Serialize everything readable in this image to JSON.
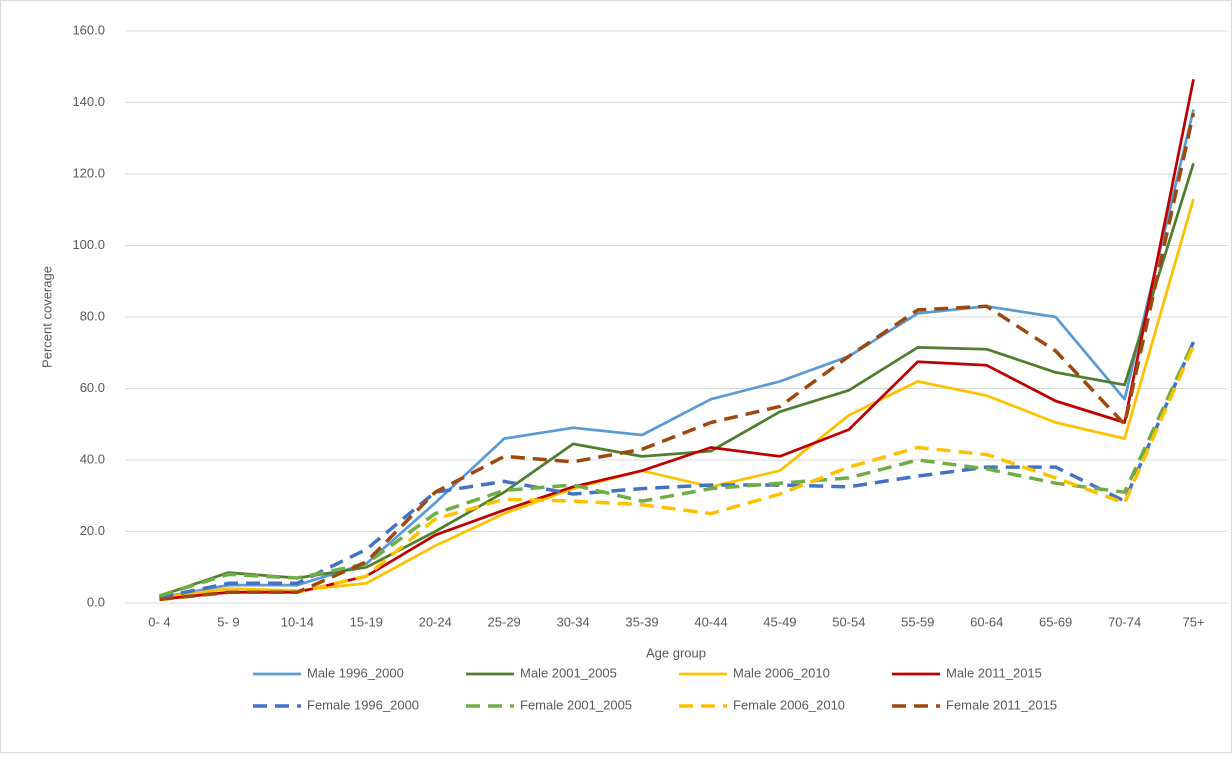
{
  "chart_data": {
    "type": "line",
    "x_label": "Age group",
    "y_label": "Percent coverage",
    "categories": [
      "0- 4",
      "5- 9",
      "10-14",
      "15-19",
      "20-24",
      "25-29",
      "30-34",
      "35-39",
      "40-44",
      "45-49",
      "50-54",
      "55-59",
      "60-64",
      "65-69",
      "70-74",
      "75+"
    ],
    "ylim": [
      0,
      160
    ],
    "yticks": [
      {
        "value": 0,
        "label": "0.0"
      },
      {
        "value": 20,
        "label": "20.0"
      },
      {
        "value": 40,
        "label": "40.0"
      },
      {
        "value": 60,
        "label": "60.0"
      },
      {
        "value": 80,
        "label": "80.0"
      },
      {
        "value": 100,
        "label": "100.0"
      },
      {
        "value": 120,
        "label": "120.0"
      },
      {
        "value": 140,
        "label": "140.0"
      },
      {
        "value": 160,
        "label": "160.0"
      }
    ],
    "grid": true,
    "legend": "bottom",
    "series": [
      {
        "name": "Male 1996_2000",
        "color": "#5b9bd5",
        "dashed": false,
        "values": [
          1.5,
          5,
          5,
          11,
          28,
          46,
          49,
          47,
          57,
          62,
          69,
          81,
          83,
          80,
          57,
          138
        ]
      },
      {
        "name": "Male 2001_2005",
        "color": "#4f7f2e",
        "dashed": false,
        "values": [
          2,
          8.5,
          7,
          10,
          20,
          31,
          44.5,
          41,
          42.5,
          53.5,
          59.5,
          71.5,
          71,
          64.5,
          61,
          123
        ]
      },
      {
        "name": "Male 2006_2010",
        "color": "#ffc000",
        "dashed": false,
        "values": [
          1.5,
          4,
          3.5,
          5.5,
          16,
          25,
          32,
          37,
          32.5,
          37,
          52.5,
          62,
          58,
          50.5,
          46,
          113
        ]
      },
      {
        "name": "Male 2011_2015",
        "color": "#c00000",
        "dashed": false,
        "values": [
          1,
          3,
          3,
          7.5,
          19,
          26,
          32.5,
          37,
          43.5,
          41,
          48.5,
          67.5,
          66.5,
          56.5,
          50.5,
          146.5
        ]
      },
      {
        "name": "Female 1996_2000",
        "color": "#4472c4",
        "dashed": true,
        "values": [
          1.5,
          5.5,
          5.5,
          15,
          31,
          34,
          30.5,
          32,
          33,
          33,
          32.5,
          35.5,
          38,
          38,
          28.5,
          73
        ]
      },
      {
        "name": "Female 2001_2005",
        "color": "#70ad47",
        "dashed": true,
        "values": [
          2,
          8,
          7,
          11,
          25,
          31.5,
          33,
          28.5,
          32,
          33.5,
          35,
          40,
          37.5,
          33.5,
          31,
          73
        ]
      },
      {
        "name": "Female 2006_2010",
        "color": "#ffc000",
        "dashed": true,
        "values": [
          1,
          3,
          3,
          7.5,
          23.5,
          29,
          28.5,
          27.5,
          25,
          30.5,
          38,
          43.5,
          41.5,
          35,
          28,
          72
        ]
      },
      {
        "name": "Female 2011_2015",
        "color": "#9e480e",
        "dashed": true,
        "values": [
          1,
          3,
          3,
          11.5,
          31,
          41,
          39.5,
          43,
          50.5,
          55,
          69,
          82,
          83,
          70.5,
          50,
          137
        ]
      }
    ]
  }
}
